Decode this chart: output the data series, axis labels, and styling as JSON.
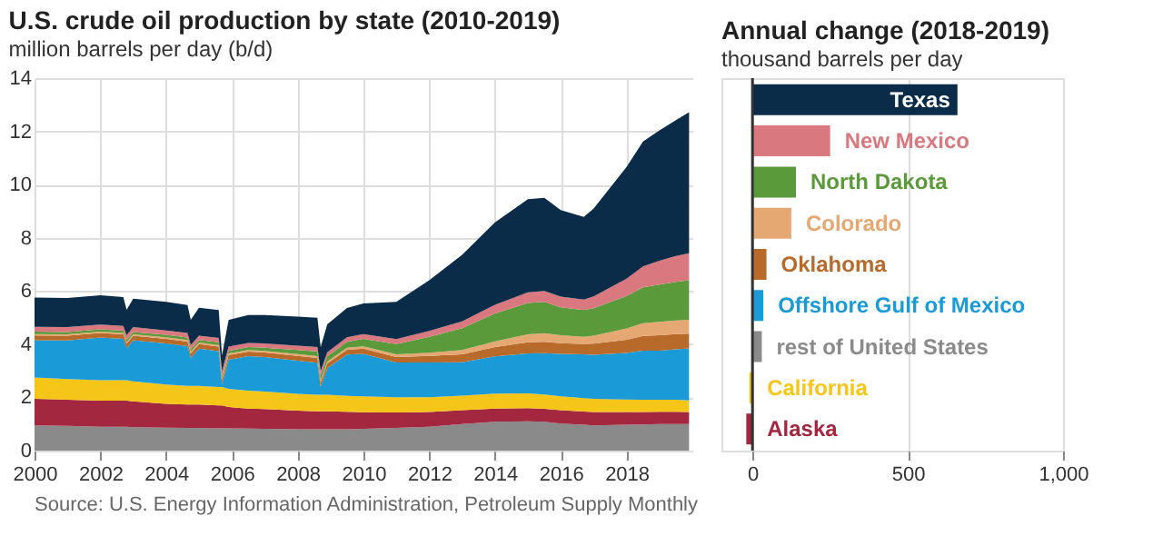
{
  "chart_data": [
    {
      "type": "area",
      "stacked": true,
      "title": "U.S. crude oil production by state (2010-2019)",
      "subtitle": "million barrels per day (b/d)",
      "x": [
        2000,
        2001,
        2002,
        2002.7,
        2002.8,
        2003,
        2004,
        2004.65,
        2004.75,
        2005,
        2005.6,
        2005.7,
        2005.9,
        2006.5,
        2007,
        2008,
        2008.6,
        2008.7,
        2008.9,
        2009.5,
        2010,
        2011,
        2012,
        2013,
        2014,
        2015,
        2015.5,
        2016,
        2016.7,
        2017,
        2018,
        2018.5,
        2019,
        2019.5,
        2019.9
      ],
      "xlim": [
        2000,
        2020
      ],
      "xticks": [
        2000,
        2002,
        2004,
        2006,
        2008,
        2010,
        2012,
        2014,
        2016,
        2018
      ],
      "ylim": [
        0,
        14
      ],
      "yticks": [
        0,
        2,
        4,
        6,
        8,
        10,
        12,
        14
      ],
      "grid": true,
      "series": [
        {
          "color": "#8a8a8a",
          "values": [
            0.95,
            0.93,
            0.9,
            0.9,
            0.9,
            0.88,
            0.86,
            0.85,
            0.85,
            0.85,
            0.84,
            0.84,
            0.84,
            0.83,
            0.82,
            0.8,
            0.8,
            0.8,
            0.8,
            0.8,
            0.82,
            0.85,
            0.9,
            1.0,
            1.08,
            1.1,
            1.08,
            1.02,
            0.97,
            0.95,
            0.97,
            0.98,
            1.0,
            1.0,
            1.0
          ]
        },
        {
          "color": "#a3283f",
          "values": [
            1.0,
            0.98,
            0.98,
            0.98,
            0.98,
            0.97,
            0.9,
            0.88,
            0.88,
            0.88,
            0.86,
            0.86,
            0.8,
            0.75,
            0.74,
            0.7,
            0.68,
            0.68,
            0.68,
            0.66,
            0.62,
            0.58,
            0.55,
            0.52,
            0.5,
            0.5,
            0.49,
            0.5,
            0.5,
            0.5,
            0.48,
            0.47,
            0.46,
            0.46,
            0.45
          ]
        },
        {
          "color": "#f5c518",
          "values": [
            0.8,
            0.78,
            0.77,
            0.77,
            0.77,
            0.75,
            0.72,
            0.7,
            0.7,
            0.7,
            0.69,
            0.69,
            0.68,
            0.67,
            0.66,
            0.63,
            0.62,
            0.62,
            0.62,
            0.6,
            0.6,
            0.58,
            0.56,
            0.55,
            0.56,
            0.55,
            0.54,
            0.52,
            0.5,
            0.5,
            0.47,
            0.46,
            0.45,
            0.45,
            0.44
          ]
        },
        {
          "color": "#1a9bd7",
          "values": [
            1.4,
            1.45,
            1.6,
            1.55,
            1.2,
            1.55,
            1.55,
            1.5,
            1.05,
            1.4,
            1.35,
            0.1,
            1.1,
            1.3,
            1.3,
            1.25,
            1.2,
            0.3,
            1.0,
            1.55,
            1.6,
            1.3,
            1.3,
            1.25,
            1.4,
            1.5,
            1.55,
            1.6,
            1.65,
            1.65,
            1.75,
            1.85,
            1.85,
            1.9,
            1.95
          ]
        },
        {
          "color": "#b86a2b",
          "values": [
            0.18,
            0.18,
            0.17,
            0.17,
            0.17,
            0.17,
            0.17,
            0.17,
            0.17,
            0.17,
            0.17,
            0.17,
            0.17,
            0.17,
            0.17,
            0.18,
            0.18,
            0.18,
            0.18,
            0.18,
            0.19,
            0.21,
            0.25,
            0.3,
            0.35,
            0.42,
            0.43,
            0.4,
            0.38,
            0.42,
            0.5,
            0.55,
            0.58,
            0.57,
            0.56
          ]
        },
        {
          "color": "#e6a873",
          "values": [
            0.05,
            0.05,
            0.05,
            0.05,
            0.05,
            0.05,
            0.06,
            0.06,
            0.06,
            0.06,
            0.06,
            0.06,
            0.06,
            0.06,
            0.06,
            0.07,
            0.07,
            0.07,
            0.07,
            0.08,
            0.09,
            0.1,
            0.12,
            0.16,
            0.22,
            0.3,
            0.32,
            0.3,
            0.28,
            0.3,
            0.42,
            0.48,
            0.5,
            0.51,
            0.52
          ]
        },
        {
          "color": "#5a9a3a",
          "values": [
            0.09,
            0.09,
            0.09,
            0.09,
            0.09,
            0.09,
            0.09,
            0.09,
            0.09,
            0.1,
            0.1,
            0.1,
            0.1,
            0.11,
            0.12,
            0.15,
            0.18,
            0.18,
            0.19,
            0.22,
            0.28,
            0.38,
            0.6,
            0.82,
            1.05,
            1.18,
            1.18,
            1.05,
            1.0,
            1.03,
            1.22,
            1.35,
            1.4,
            1.45,
            1.48
          ]
        },
        {
          "color": "#d9787f",
          "values": [
            0.18,
            0.18,
            0.18,
            0.18,
            0.18,
            0.18,
            0.17,
            0.17,
            0.17,
            0.16,
            0.16,
            0.16,
            0.16,
            0.16,
            0.16,
            0.16,
            0.16,
            0.16,
            0.16,
            0.17,
            0.18,
            0.19,
            0.22,
            0.26,
            0.32,
            0.4,
            0.41,
            0.4,
            0.4,
            0.45,
            0.65,
            0.78,
            0.9,
            0.98,
            1.02
          ]
        },
        {
          "color": "#0b2c48",
          "values": [
            1.1,
            1.1,
            1.1,
            1.08,
            0.95,
            1.07,
            1.07,
            1.05,
            0.95,
            1.05,
            1.05,
            0.6,
            1.0,
            1.05,
            1.07,
            1.1,
            1.1,
            0.9,
            1.05,
            1.1,
            1.15,
            1.4,
            1.9,
            2.5,
            3.1,
            3.5,
            3.5,
            3.25,
            3.1,
            3.3,
            4.2,
            4.7,
            4.9,
            5.1,
            5.3
          ]
        }
      ],
      "annotations": [
        "Source: U.S. Energy Information Administration, Petroleum Supply Monthly"
      ]
    },
    {
      "type": "bar",
      "orientation": "horizontal",
      "title": "Annual change (2018-2019)",
      "subtitle": "thousand barrels per day",
      "categories": [
        "Texas",
        "New Mexico",
        "North Dakota",
        "Colorado",
        "Oklahoma",
        "Offshore Gulf of Mexico",
        "rest of United States",
        "California",
        "Alaska"
      ],
      "values": [
        660,
        250,
        140,
        125,
        45,
        35,
        30,
        -10,
        -20
      ],
      "colors": [
        "#0b2c48",
        "#d9787f",
        "#5a9a3a",
        "#e6a873",
        "#b86a2b",
        "#1a9bd7",
        "#8a8a8a",
        "#f5c518",
        "#a3283f"
      ],
      "xlim": [
        -100,
        1000
      ],
      "xticks": [
        0,
        500,
        {
          "value": 1000,
          "label": "1,000"
        }
      ],
      "grid": "x",
      "ref_lines": [
        {
          "axis": "x",
          "value": 0,
          "color": "#333333"
        }
      ]
    }
  ]
}
